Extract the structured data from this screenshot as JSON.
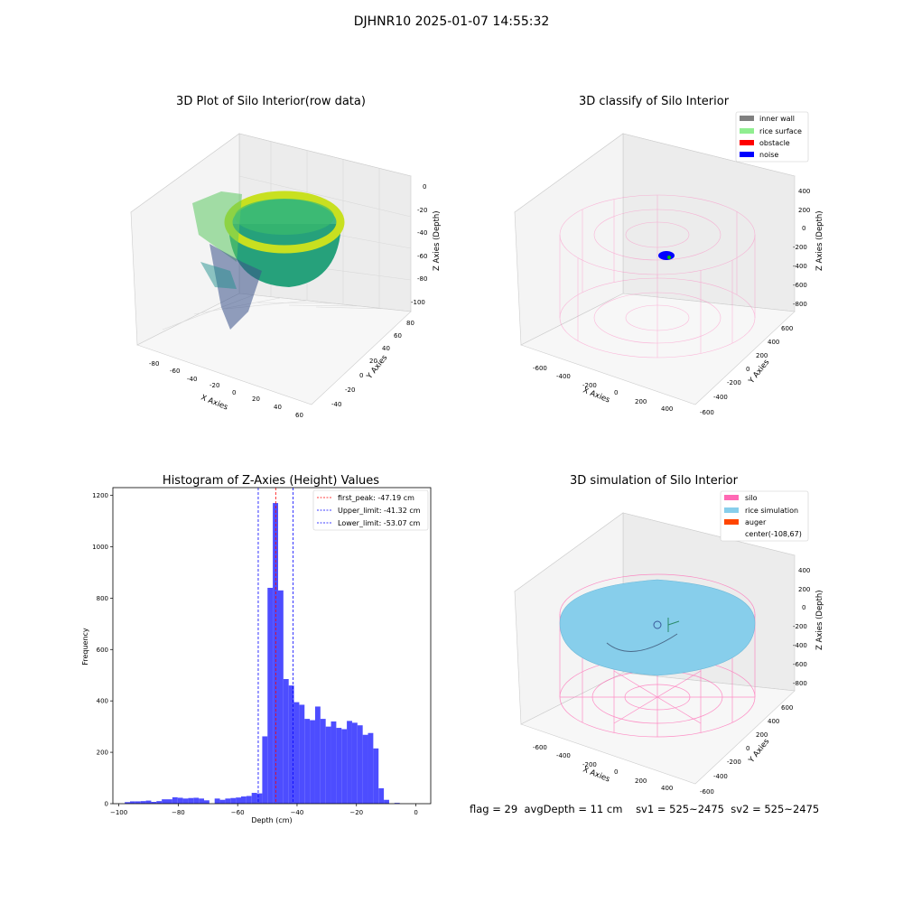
{
  "figure": {
    "suptitle": "DJHNR10 2025-01-07 14:55:32"
  },
  "footer": {
    "flag": "flag = 29",
    "avg_depth": "avgDepth = 11 cm",
    "sv1": "sv1 = 525~2475",
    "sv2": "sv2 = 525~2475"
  },
  "colors": {
    "inner_wall": "#808080",
    "rice_surface": "#90ee90",
    "obstacle": "#ff0000",
    "noise": "#0000ff",
    "silo": "#ff69b4",
    "rice_simulation": "#87ceeb",
    "auger": "#ff4500",
    "hist_bar": "#4d4dff",
    "first_peak_line": "#ff0000",
    "limit_line": "#0000ff"
  },
  "panel1": {
    "title": "3D Plot of Silo Interior(row data)",
    "xlabel": "X Axies",
    "ylabel": "Y Axies",
    "zlabel": "Z Axies (Depth)",
    "xticks": [
      "-80",
      "-60",
      "-40",
      "-20",
      "0",
      "20",
      "40",
      "60"
    ],
    "yticks": [
      "-40",
      "-20",
      "0",
      "20",
      "40",
      "60",
      "80"
    ],
    "zticks": [
      "0",
      "-20",
      "-40",
      "-60",
      "-80",
      "-100"
    ]
  },
  "panel2": {
    "title": "3D classify of Silo Interior",
    "xlabel": "X Axies",
    "ylabel": "Y Axies",
    "zlabel": "Z Axies (Depth)",
    "xticks": [
      "-600",
      "-400",
      "-200",
      "0",
      "200",
      "400"
    ],
    "yticks": [
      "-600",
      "-400",
      "-200",
      "0",
      "200",
      "400",
      "600"
    ],
    "zticks": [
      "400",
      "200",
      "0",
      "-200",
      "-400",
      "-600",
      "-800"
    ],
    "legend": [
      "inner wall",
      "rice surface",
      "obstacle",
      "noise"
    ]
  },
  "panel4": {
    "title": "3D simulation of Silo Interior",
    "xlabel": "X Axies",
    "ylabel": "Y Axies",
    "zlabel": "Z Axies (Depth)",
    "xticks": [
      "-600",
      "-400",
      "-200",
      "0",
      "200",
      "400"
    ],
    "yticks": [
      "-600",
      "-400",
      "-200",
      "0",
      "200",
      "400",
      "600"
    ],
    "zticks": [
      "400",
      "200",
      "0",
      "-200",
      "-400",
      "-600",
      "-800"
    ],
    "legend": [
      "silo",
      "rice simulation",
      "auger",
      "center(-108,67)"
    ]
  },
  "chart_data": [
    {
      "type": "bar",
      "title": "Histogram of Z-Axies (Height) Values",
      "xlabel": "Depth (cm)",
      "ylabel": "Frequency",
      "xlim": [
        -102,
        5
      ],
      "ylim": [
        0,
        1230
      ],
      "xticks": [
        -100,
        -80,
        -60,
        -40,
        -20,
        0
      ],
      "yticks": [
        0,
        200,
        400,
        600,
        800,
        1000,
        1200
      ],
      "bin_width": 1.78,
      "bin_start": -98.0,
      "values": [
        6,
        9,
        9,
        10,
        12,
        7,
        10,
        17,
        17,
        25,
        23,
        20,
        22,
        23,
        20,
        13,
        0,
        20,
        15,
        20,
        22,
        24,
        28,
        30,
        42,
        40,
        262,
        840,
        1170,
        830,
        485,
        460,
        395,
        385,
        330,
        325,
        378,
        330,
        300,
        320,
        295,
        290,
        322,
        315,
        305,
        268,
        275,
        215,
        60,
        15,
        0,
        3
      ],
      "lines": [
        {
          "label": "first_peak: -47.19 cm",
          "x": -47.19,
          "color": "red"
        },
        {
          "label": "Upper_limit: -41.32 cm",
          "x": -41.32,
          "color": "blue"
        },
        {
          "label": "Lower_limit: -53.07 cm",
          "x": -53.07,
          "color": "blue"
        }
      ],
      "legend_position": "top-right"
    }
  ]
}
